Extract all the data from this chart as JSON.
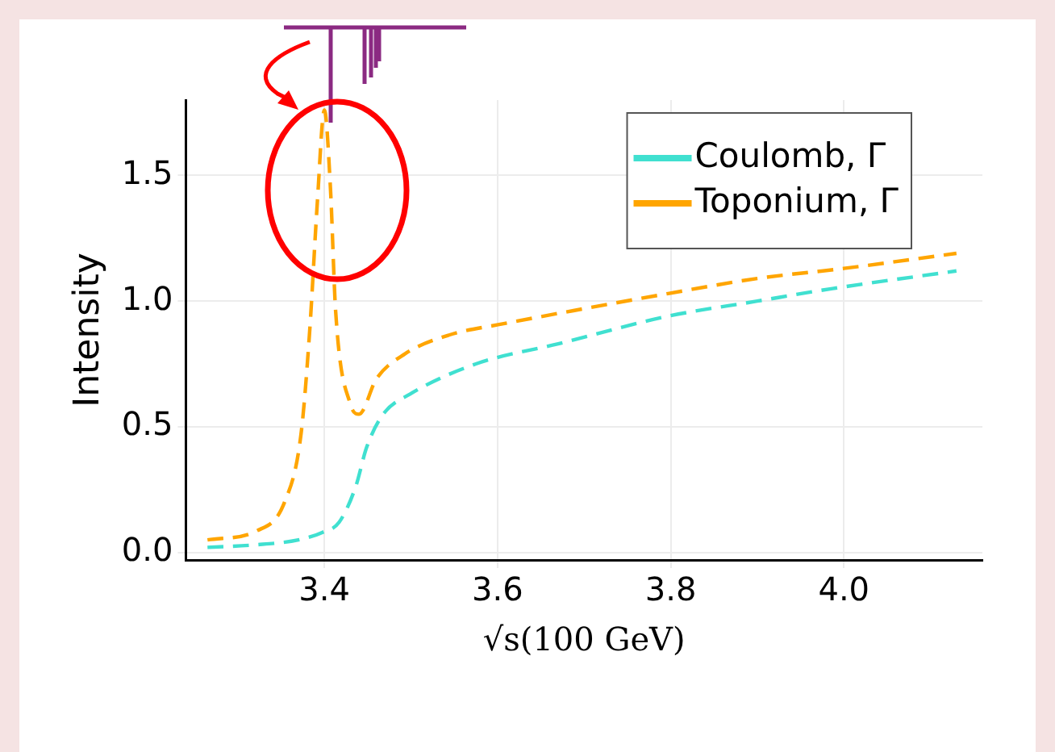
{
  "chart_data": {
    "type": "line",
    "xlabel": "√s(100 GeV)",
    "ylabel": "Intensity",
    "xlim": [
      3.24,
      4.16
    ],
    "xticks": [
      3.4,
      3.6,
      3.8,
      {
        "value": 4,
        "label": "4.0"
      }
    ],
    "ylim": [
      -0.03,
      1.8
    ],
    "yticks": [
      {
        "value": 0,
        "label": "0.0"
      },
      0.5,
      {
        "value": 1,
        "label": "1.0"
      },
      1.5
    ],
    "grid": true,
    "legend": "top right",
    "marker": "none",
    "line_style": "dashed",
    "series": [
      {
        "name": "Coulomb, Γ",
        "color": "#40e0d0",
        "x": [
          3.265,
          3.32,
          3.37,
          3.398,
          3.417,
          3.436,
          3.449,
          3.468,
          3.499,
          3.575,
          3.67,
          3.797,
          3.9,
          3.987,
          4.13
        ],
        "values": [
          0.02,
          0.03,
          0.05,
          0.08,
          0.12,
          0.26,
          0.42,
          0.55,
          0.63,
          0.75,
          0.83,
          0.94,
          1.0,
          1.05,
          1.12
        ]
      },
      {
        "name": "Toponium, Γ",
        "color": "#ffa500",
        "x": [
          3.265,
          3.322,
          3.354,
          3.373,
          3.383,
          3.392,
          3.4,
          3.407,
          3.413,
          3.43,
          3.44,
          3.46,
          3.493,
          3.544,
          3.607,
          3.7,
          3.797,
          3.9,
          4.0,
          4.13
        ],
        "values": [
          0.05,
          0.086,
          0.2,
          0.47,
          0.88,
          1.4,
          1.76,
          1.45,
          0.96,
          0.59,
          0.55,
          0.69,
          0.79,
          0.865,
          0.91,
          0.97,
          1.03,
          1.09,
          1.13,
          1.19
        ]
      }
    ]
  }
}
